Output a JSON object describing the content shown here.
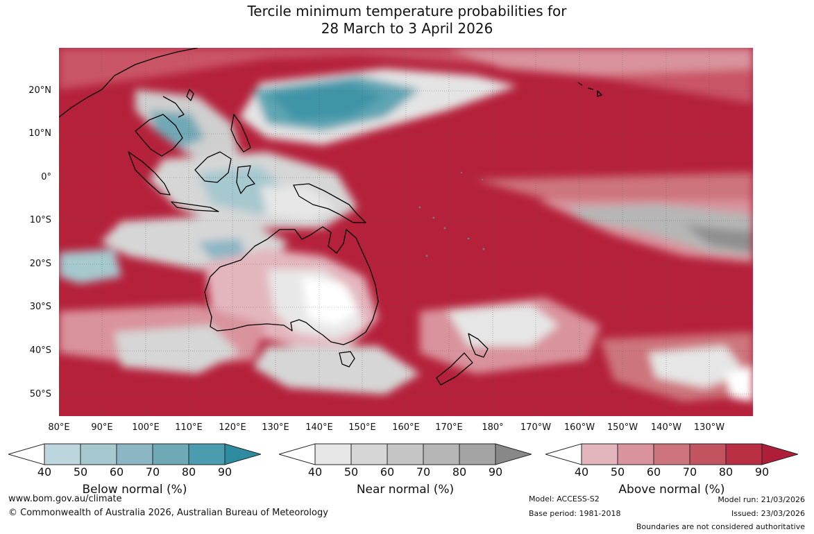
{
  "title": {
    "line1": "Tercile minimum temperature probabilities for",
    "line2": "28 March to 3 April 2026"
  },
  "map": {
    "lat_labels": [
      "20°N",
      "10°N",
      "0°",
      "10°S",
      "20°S",
      "30°S",
      "40°S",
      "50°S"
    ],
    "lon_labels": [
      "80°E",
      "90°E",
      "100°E",
      "110°E",
      "120°E",
      "130°E",
      "140°E",
      "150°E",
      "160°E",
      "170°E",
      "180°",
      "170°W",
      "160°W",
      "150°W",
      "140°W",
      "130°W"
    ]
  },
  "colorbars": [
    {
      "name": "below",
      "title": "Below normal (%)",
      "ticks": [
        "40",
        "50",
        "60",
        "70",
        "80",
        "90"
      ],
      "colors": [
        "#bdd5dc",
        "#a6c8cf",
        "#8cb6c4",
        "#6fa9b5",
        "#4a9cae",
        "#2e8ca1"
      ]
    },
    {
      "name": "near",
      "title": "Near normal (%)",
      "ticks": [
        "40",
        "50",
        "60",
        "70",
        "80",
        "90"
      ],
      "colors": [
        "#e6e6e6",
        "#d6d6d6",
        "#c5c5c5",
        "#b6b6b6",
        "#a4a4a4",
        "#888888"
      ]
    },
    {
      "name": "above",
      "title": "Above normal (%)",
      "ticks": [
        "40",
        "50",
        "60",
        "70",
        "80",
        "90"
      ],
      "colors": [
        "#e3b6be",
        "#d9939c",
        "#cd747c",
        "#c25460",
        "#b82f43",
        "#b01d38"
      ]
    }
  ],
  "footer": {
    "url": "www.bom.gov.au/climate",
    "copyright": "© Commonwealth of Australia 2026, Australian Bureau of Meteorology",
    "model": "Model: ACCESS-S2",
    "base_period": "Base period: 1981-2018",
    "model_run": "Model run: 21/03/2026",
    "issued": "Issued: 23/03/2026",
    "disclaimer": "Boundaries are not considered authoritative"
  }
}
